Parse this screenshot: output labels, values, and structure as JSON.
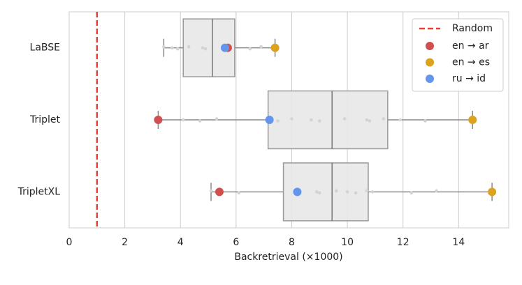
{
  "chart_data": {
    "type": "box",
    "xlabel": "Backretrieval (×1000)",
    "categories": [
      "LaBSE",
      "Triplet",
      "TripletXL"
    ],
    "boxes": [
      {
        "whislo": 3.4,
        "q1": 4.1,
        "median": 5.15,
        "q3": 5.95,
        "whishi": 7.4,
        "points": [
          3.4,
          3.7,
          3.9,
          4.3,
          4.8,
          4.9,
          5.6,
          5.7,
          6.5,
          6.9,
          7.4
        ]
      },
      {
        "whislo": 3.2,
        "q1": 7.15,
        "median": 9.45,
        "q3": 11.45,
        "whishi": 14.5,
        "points": [
          3.2,
          4.1,
          4.7,
          5.3,
          7.2,
          7.5,
          8.0,
          8.7,
          9.0,
          9.9,
          10.7,
          10.8,
          11.3,
          11.9,
          12.8,
          14.5
        ]
      },
      {
        "whislo": 5.1,
        "q1": 7.7,
        "median": 9.45,
        "q3": 10.75,
        "whishi": 15.2,
        "points": [
          5.1,
          5.4,
          6.1,
          8.2,
          8.9,
          9.0,
          9.6,
          10.0,
          10.3,
          10.7,
          10.9,
          12.3,
          13.2,
          15.2
        ]
      }
    ],
    "series": [
      {
        "name": "en → ar",
        "color": "#d0504f",
        "values": [
          5.7,
          3.2,
          5.4
        ]
      },
      {
        "name": "en → es",
        "color": "#dba31f",
        "values": [
          7.4,
          14.5,
          15.2
        ]
      },
      {
        "name": "ru → id",
        "color": "#6495ed",
        "values": [
          5.6,
          7.2,
          8.2
        ]
      }
    ],
    "reference": {
      "name": "Random",
      "value": 1,
      "color": "#ee3a36"
    },
    "xlim": [
      0,
      15.8
    ],
    "xticks": [
      0,
      2,
      4,
      6,
      8,
      10,
      12,
      14
    ],
    "grid": true,
    "legend": "upper right"
  }
}
